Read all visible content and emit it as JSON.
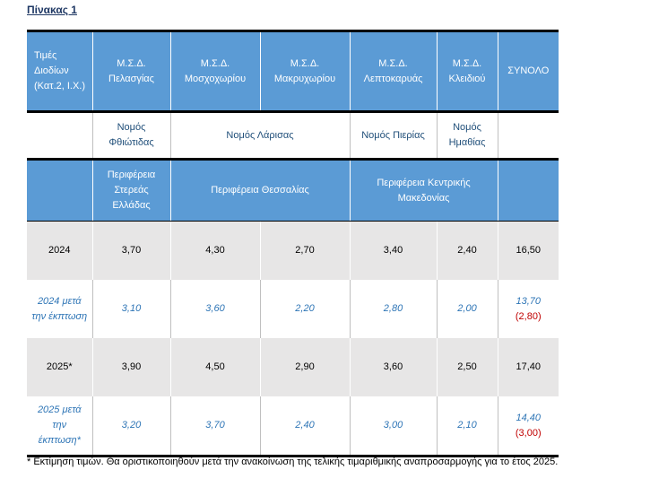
{
  "caption": "Πίνακας 1",
  "header": {
    "corner": "Τιμές Διοδίων (Κατ.2, Ι.Χ.)",
    "stations": [
      "Μ.Σ.Δ. Πελασγίας",
      "Μ.Σ.Δ. Μοσχοχωρίου",
      "Μ.Σ.Δ. Μακρυχωρίου",
      "Μ.Σ.Δ. Λεπτοκαρυάς",
      "Μ.Σ.Δ. Κλειδιού"
    ],
    "total": "ΣΥΝΟΛΟ"
  },
  "nomoi": [
    "Νομός Φθιώτιδας",
    "Νομός Λάρισας",
    "Νομός Πιερίας",
    "Νομός Ημαθίας"
  ],
  "perifereies": [
    "Περιφέρεια Στερεάς Ελλάδας",
    "Περιφέρεια Θεσσαλίας",
    "Περιφέρεια Κεντρικής Μακεδονίας"
  ],
  "rows": [
    {
      "label": "2024",
      "values": [
        "3,70",
        "4,30",
        "2,70",
        "3,40",
        "2,40"
      ],
      "total": "16,50",
      "saving": ""
    },
    {
      "label": "2024 μετά την έκπτωση",
      "values": [
        "3,10",
        "3,60",
        "2,20",
        "2,80",
        "2,00"
      ],
      "total": "13,70",
      "saving": "(2,80)"
    },
    {
      "label": "2025*",
      "values": [
        "3,90",
        "4,50",
        "2,90",
        "3,60",
        "2,50"
      ],
      "total": "17,40",
      "saving": ""
    },
    {
      "label": "2025 μετά την έκπτωση*",
      "values": [
        "3,20",
        "3,70",
        "2,40",
        "3,00",
        "2,10"
      ],
      "total": "14,40",
      "saving": "(3,00)"
    }
  ],
  "footnote": "* Εκτίμηση τιμών. Θα οριστικοποιηθούν μετά την ανακοίνωση της τελικής τιμαριθμικής αναπροσαρμογής για το έτος 2025."
}
